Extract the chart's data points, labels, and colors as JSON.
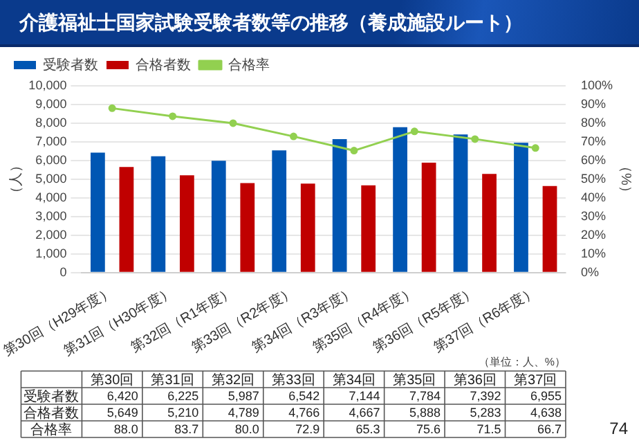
{
  "chart_data": {
    "type": "bar",
    "title": "介護福祉士国家試験受験者数等の推移（養成施設ルート）",
    "ylabel": "（人）",
    "y2label": "（%）",
    "categories": [
      "第30回（H29年度）",
      "第31回（H30年度）",
      "第32回（R1年度）",
      "第33回（R2年度）",
      "第34回（R3年度）",
      "第35回（R4年度）",
      "第36回（R5年度）",
      "第37回（R6年度）"
    ],
    "series": [
      {
        "name": "受験者数",
        "color": "#0056b3",
        "values": [
          6420,
          6225,
          5987,
          6542,
          7144,
          7784,
          7392,
          6955
        ],
        "value_labels": [
          "6,420",
          "6,225",
          "5,987",
          "6,542",
          "7,144",
          "7,784",
          "7,392",
          "6,955"
        ]
      },
      {
        "name": "合格者数",
        "color": "#c00000",
        "values": [
          5649,
          5210,
          4789,
          4766,
          4667,
          5888,
          5283,
          4638
        ],
        "value_labels": [
          "5,649",
          "5,210",
          "4,789",
          "4,766",
          "4,667",
          "5,888",
          "5,283",
          "4,638"
        ]
      },
      {
        "name": "合格率",
        "type": "line",
        "axis": "y2",
        "color": "#92d050",
        "values": [
          88.0,
          83.7,
          80.0,
          72.9,
          65.3,
          75.6,
          71.5,
          66.7
        ],
        "value_labels": [
          "88.0",
          "83.7",
          "80.0",
          "72.9",
          "65.3",
          "75.6",
          "71.5",
          "66.7"
        ]
      }
    ],
    "ylim": [
      0,
      10000
    ],
    "yticks": [
      0,
      {
        "value": 1000,
        "label": "1,000"
      },
      {
        "value": 2000,
        "label": "2,000"
      },
      {
        "value": 3000,
        "label": "3,000"
      },
      {
        "value": 4000,
        "label": "4,000"
      },
      {
        "value": 5000,
        "label": "5,000"
      },
      {
        "value": 6000,
        "label": "6,000"
      },
      {
        "value": 7000,
        "label": "7,000"
      },
      {
        "value": 8000,
        "label": "8,000"
      },
      {
        "value": 9000,
        "label": "9,000"
      },
      {
        "value": 10000,
        "label": "10,000"
      }
    ],
    "y2lim": [
      0,
      100
    ],
    "y2ticks": [
      {
        "value": 0,
        "label": "0%"
      },
      {
        "value": 10,
        "label": "10%"
      },
      {
        "value": 20,
        "label": "20%"
      },
      {
        "value": 30,
        "label": "30%"
      },
      {
        "value": 40,
        "label": "40%"
      },
      {
        "value": 50,
        "label": "50%"
      },
      {
        "value": 60,
        "label": "60%"
      },
      {
        "value": 70,
        "label": "70%"
      },
      {
        "value": 80,
        "label": "80%"
      },
      {
        "value": 90,
        "label": "90%"
      },
      {
        "value": 100,
        "label": "100%"
      }
    ],
    "grid": "y",
    "legend": "top left",
    "marker": "circle",
    "line_style": "solid",
    "annotations": [
      "（単位：人、%）",
      "74",
      "第30回",
      "第31回",
      "第32回",
      "第33回",
      "第34回",
      "第35回",
      "第36回",
      "第37回"
    ]
  }
}
